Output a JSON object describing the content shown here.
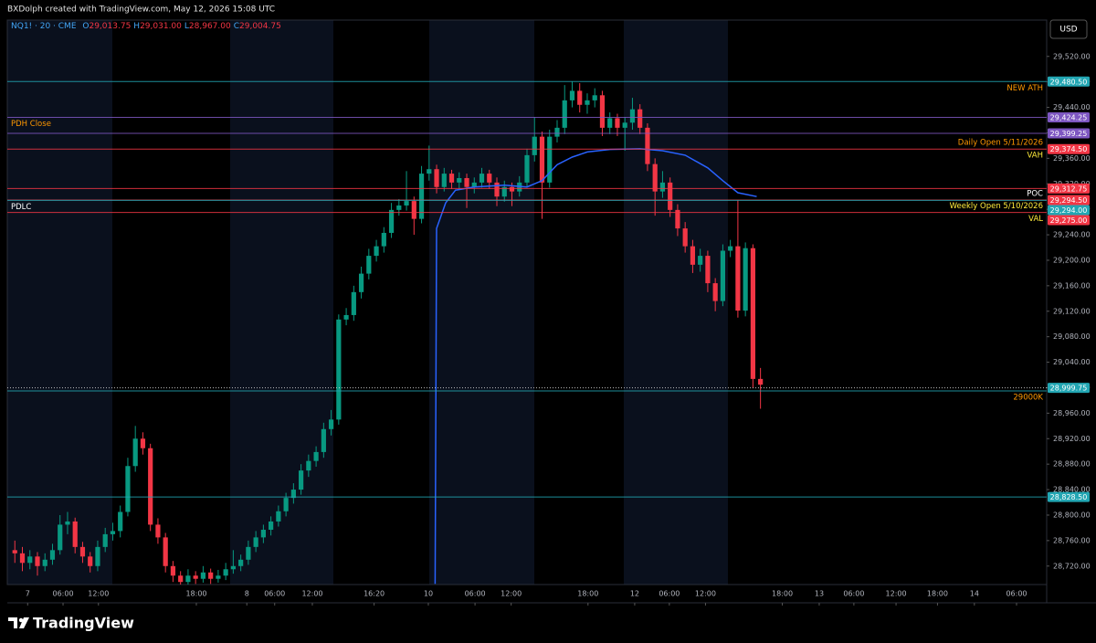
{
  "header": {
    "text": "BXDolph created with TradingView.com, May 12, 2026 15:08 UTC"
  },
  "brand": "TradingView",
  "chart_data": {
    "type": "candlestick",
    "symbol": "NQ1! · 20 · CME",
    "ohlc_legend": [
      {
        "key": "O",
        "value": "29,013.75"
      },
      {
        "key": "H",
        "value": "29,031.00"
      },
      {
        "key": "L",
        "value": "28,967.00"
      },
      {
        "key": "C",
        "value": "29,004.75"
      }
    ],
    "currency": "USD",
    "up_color": "#089981",
    "down_color": "#f23645",
    "x": [
      1,
      2,
      3,
      4,
      5,
      6,
      7,
      8,
      9,
      10,
      11,
      12,
      13,
      14,
      15,
      16,
      17,
      18,
      19,
      20,
      21,
      22,
      23,
      24,
      25,
      26,
      27,
      28,
      29,
      30,
      31,
      32,
      33,
      34,
      35,
      36,
      37,
      38,
      39,
      40,
      41,
      42,
      43,
      44,
      45,
      46,
      47,
      48,
      49,
      50,
      51,
      52,
      53,
      54,
      55,
      56,
      57,
      58,
      59,
      60,
      61,
      62,
      63,
      64,
      65,
      66,
      67,
      68,
      69,
      70,
      71,
      72,
      73,
      74,
      75,
      76,
      77,
      78,
      79,
      80,
      81,
      82,
      83,
      84,
      85,
      86,
      87,
      88,
      89,
      90,
      91,
      92,
      93,
      94,
      95,
      96,
      97,
      98,
      99,
      100
    ],
    "open": [
      28745,
      28740,
      28725,
      28735,
      28720,
      28730,
      28745,
      28785,
      28790,
      28750,
      28735,
      28720,
      28750,
      28770,
      28775,
      28805,
      28877,
      28920,
      28905,
      28785,
      28765,
      28720,
      28705,
      28695,
      28705,
      28700,
      28710,
      28700,
      28705,
      28715,
      28720,
      28730,
      28750,
      28765,
      28777,
      28790,
      28806,
      28827,
      28840,
      28870,
      28885,
      28899,
      28935,
      28950,
      29107,
      29114,
      29150,
      29179,
      29207,
      29222,
      29243,
      29279,
      29286,
      29293,
      29265,
      29336,
      29343,
      29315,
      29336,
      29322,
      29329,
      29315,
      29322,
      29336,
      29322,
      29300,
      29315,
      29308,
      29322,
      29365,
      29394,
      29322,
      29394,
      29408,
      29451,
      29466,
      29444,
      29451,
      29459,
      29408,
      29423,
      29408,
      29416,
      29437,
      29408,
      29351,
      29308,
      29322,
      29279,
      29250,
      29222,
      29193,
      29207,
      29164,
      29136,
      29215,
      29222,
      29121,
      29219,
      29013.75
    ],
    "high": [
      28760,
      28750,
      28745,
      28742,
      28740,
      28755,
      28800,
      28805,
      28796,
      28758,
      28742,
      28760,
      28780,
      28788,
      28815,
      28890,
      28940,
      28930,
      28912,
      28795,
      28772,
      28728,
      28712,
      28715,
      28712,
      28720,
      28716,
      28714,
      28725,
      28745,
      28738,
      28760,
      28775,
      28785,
      28798,
      28815,
      28835,
      28850,
      28880,
      28895,
      28908,
      28945,
      28965,
      29115,
      29125,
      29160,
      29190,
      29218,
      29232,
      29252,
      29290,
      29296,
      29340,
      29300,
      29348,
      29380,
      29350,
      29345,
      29342,
      29338,
      29336,
      29330,
      29345,
      29342,
      29330,
      29325,
      29322,
      29332,
      29375,
      29425,
      29402,
      29405,
      29420,
      29475,
      29480.5,
      29478,
      29462,
      29470,
      29466,
      29432,
      29430,
      29425,
      29455,
      29445,
      29415,
      29360,
      29340,
      29330,
      29288,
      29260,
      29232,
      29218,
      29215,
      29172,
      29225,
      29232,
      29295,
      29228,
      29225,
      29031
    ],
    "low": [
      28725,
      28712,
      28715,
      28705,
      28712,
      28722,
      28738,
      28770,
      28740,
      28725,
      28710,
      28712,
      28742,
      28760,
      28765,
      28798,
      28868,
      28895,
      28775,
      28755,
      28710,
      28695,
      28688,
      28690,
      28692,
      28694,
      28692,
      28694,
      28698,
      28708,
      28712,
      28722,
      28742,
      28756,
      28768,
      28782,
      28798,
      28818,
      28832,
      28860,
      28876,
      28890,
      28925,
      28942,
      29098,
      29105,
      29140,
      29170,
      29198,
      29212,
      29235,
      29270,
      29278,
      29240,
      29258,
      29325,
      29305,
      29308,
      29312,
      29312,
      29282,
      29305,
      29314,
      29312,
      29285,
      29292,
      29285,
      29300,
      29314,
      29355,
      29265,
      29314,
      29385,
      29398,
      29440,
      29432,
      29430,
      29440,
      29395,
      29398,
      29395,
      29372,
      29405,
      29398,
      29340,
      29270,
      29298,
      29268,
      29238,
      29212,
      29180,
      29182,
      29150,
      29120,
      29128,
      29205,
      29110,
      29112,
      29000,
      28967
    ],
    "close": [
      28740,
      28725,
      28735,
      28720,
      28730,
      28745,
      28785,
      28790,
      28750,
      28735,
      28720,
      28750,
      28770,
      28775,
      28805,
      28877,
      28920,
      28905,
      28785,
      28765,
      28720,
      28705,
      28695,
      28705,
      28700,
      28710,
      28700,
      28705,
      28715,
      28720,
      28730,
      28750,
      28765,
      28777,
      28790,
      28806,
      28827,
      28840,
      28870,
      28885,
      28899,
      28935,
      28950,
      29107,
      29114,
      29150,
      29179,
      29207,
      29222,
      29243,
      29279,
      29286,
      29293,
      29265,
      29336,
      29343,
      29315,
      29336,
      29322,
      29329,
      29315,
      29322,
      29336,
      29322,
      29300,
      29315,
      29308,
      29322,
      29365,
      29394,
      29322,
      29394,
      29408,
      29451,
      29466,
      29444,
      29451,
      29459,
      29408,
      29423,
      29408,
      29416,
      29437,
      29408,
      29351,
      29308,
      29322,
      29279,
      29250,
      29222,
      29193,
      29207,
      29164,
      29136,
      29215,
      29222,
      29121,
      29219,
      29013.75,
      29004.75
    ],
    "overlay": {
      "color": "#2962ff",
      "x": [
        56.8,
        57.0,
        58.2,
        59.5,
        62,
        66,
        69,
        71,
        73,
        75,
        77,
        80,
        84,
        87,
        90,
        93,
        95,
        97,
        99.5
      ],
      "values": [
        28692,
        29250,
        29290,
        29310,
        29315,
        29318,
        29315,
        29325,
        29350,
        29362,
        29370,
        29374,
        29375,
        29372,
        29365,
        29345,
        29325,
        29306,
        29300
      ]
    },
    "xlim": [
      0,
      138
    ],
    "xticks": [
      {
        "value": 2.7,
        "label": "7"
      },
      {
        "value": 7.4,
        "label": "06:00"
      },
      {
        "value": 12.1,
        "label": "12:00"
      },
      {
        "value": 25.1,
        "label": "18:00"
      },
      {
        "value": 31.8,
        "label": "8"
      },
      {
        "value": 35.5,
        "label": "06:00"
      },
      {
        "value": 40.5,
        "label": "12:00"
      },
      {
        "value": 48.7,
        "label": "16:20"
      },
      {
        "value": 55.9,
        "label": "10"
      },
      {
        "value": 62.1,
        "label": "06:00"
      },
      {
        "value": 66.9,
        "label": "12:00"
      },
      {
        "value": 77.1,
        "label": "18:00"
      },
      {
        "value": 83.3,
        "label": "12"
      },
      {
        "value": 87.9,
        "label": "06:00"
      },
      {
        "value": 92.7,
        "label": "12:00"
      },
      {
        "value": 102.9,
        "label": "18:00"
      },
      {
        "value": 107.8,
        "label": "13"
      },
      {
        "value": 112.4,
        "label": "06:00"
      },
      {
        "value": 118,
        "label": "12:00"
      },
      {
        "value": 123.5,
        "label": "18:00"
      },
      {
        "value": 128.4,
        "label": "14"
      },
      {
        "value": 134,
        "label": "06:00"
      }
    ],
    "ylim": [
      28691,
      29577
    ],
    "yticks": [
      {
        "value": 28720,
        "label": "28,720.00"
      },
      {
        "value": 28760,
        "label": "28,760.00"
      },
      {
        "value": 28800,
        "label": "28,800.00"
      },
      {
        "value": 28840,
        "label": "28,840.00"
      },
      {
        "value": 28880,
        "label": "28,880.00"
      },
      {
        "value": 28920,
        "label": "28,920.00"
      },
      {
        "value": 28960,
        "label": "28,960.00"
      },
      {
        "value": 29000,
        "label": "29,000.00"
      },
      {
        "value": 29040,
        "label": "29,040.00"
      },
      {
        "value": 29080,
        "label": "29,080.00"
      },
      {
        "value": 29120,
        "label": "29,120.00"
      },
      {
        "value": 29160,
        "label": "29,160.00"
      },
      {
        "value": 29200,
        "label": "29,200.00"
      },
      {
        "value": 29240,
        "label": "29,240.00"
      },
      {
        "value": 29280,
        "label": "29,280.00"
      },
      {
        "value": 29320,
        "label": "29,320.00"
      },
      {
        "value": 29360,
        "label": "29,360.00"
      },
      {
        "value": 29400,
        "label": "29,400.00"
      },
      {
        "value": 29440,
        "label": "29,440.00"
      },
      {
        "value": 29480,
        "label": "29,480.00"
      },
      {
        "value": 29520,
        "label": "29,520.00"
      }
    ],
    "levels": [
      {
        "value": 29480.5,
        "badge": "29,480.50",
        "color": "#22a6b3",
        "notes": [
          {
            "text": "NEW ATH",
            "color": "#ff9800",
            "side": "right",
            "place": "below"
          }
        ]
      },
      {
        "value": 29424.25,
        "badge": "29,424.25",
        "color": "#7e57c2",
        "notes": [
          {
            "text": "PDH Close",
            "color": "#ff9800",
            "side": "left",
            "place": "below"
          }
        ]
      },
      {
        "value": 29399.25,
        "badge": "29,399.25",
        "color": "#7e57c2"
      },
      {
        "value": 29374.5,
        "badge": "29,374.50",
        "color": "#f23645",
        "notes": [
          {
            "text": "Daily Open 5/11/2026",
            "color": "#ff9800",
            "side": "right",
            "place": "above"
          },
          {
            "text": "VAH",
            "color": "#ffeb3b",
            "side": "right",
            "place": "below"
          }
        ]
      },
      {
        "value": 29312.75,
        "badge": "29,312.75",
        "color": "#f23645"
      },
      {
        "value": 29294.5,
        "badge": "29,294.50",
        "color": "#f23645",
        "notes": [
          {
            "text": "POC",
            "color": "#ffffff",
            "side": "right",
            "place": "above"
          }
        ]
      },
      {
        "value": 29294.0,
        "badge": "29,294.00",
        "color": "#22a6b3",
        "notes": [
          {
            "text": "PDLC",
            "color": "#ffffff",
            "side": "left",
            "place": "below"
          }
        ]
      },
      {
        "value": 29275.0,
        "badge": "29,275.00",
        "color": "#f23645",
        "notes": [
          {
            "text": "Weekly Open 5/10/2026",
            "color": "#ffeb3b",
            "side": "right",
            "place": "above"
          },
          {
            "text": "VAL",
            "color": "#ffeb3b",
            "side": "right",
            "place": "below"
          }
        ]
      },
      {
        "value": 28999.75,
        "badge": "28,999.75",
        "color": "#22a6b3",
        "style": "dotted"
      },
      {
        "value": 28995,
        "color": "#22a6b3",
        "notes": [
          {
            "text": "29000K",
            "color": "#ff9800",
            "side": "right",
            "place": "below"
          }
        ]
      },
      {
        "value": 28828.5,
        "badge": "28,828.50",
        "color": "#22a6b3"
      }
    ]
  }
}
